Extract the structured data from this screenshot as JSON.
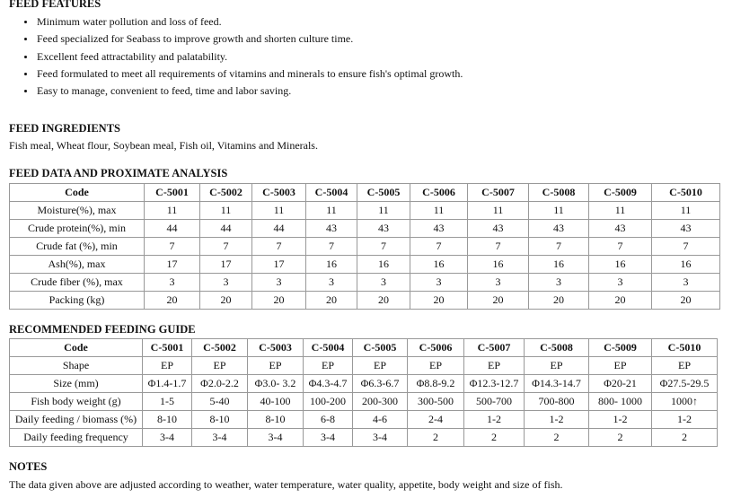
{
  "features": {
    "title": "FEED FEATURES",
    "items": [
      "Minimum water pollution and loss of feed.",
      "Feed specialized for Seabass to improve growth and shorten culture time.",
      "Excellent feed attractability and palatability.",
      "Feed formulated to meet all requirements of vitamins and minerals to ensure fish's optimal growth.",
      "Easy to manage, convenient to feed, time and labor saving."
    ]
  },
  "ingredients": {
    "title": "FEED INGREDIENTS",
    "text": "Fish meal, Wheat flour, Soybean meal, Fish oil, Vitamins and Minerals."
  },
  "analysis": {
    "title": "FEED DATA AND PROXIMATE ANALYSIS",
    "table": {
      "header": [
        "Code",
        "C-5001",
        "C-5002",
        "C-5003",
        "C-5004",
        "C-5005",
        "C-5006",
        "C-5007",
        "C-5008",
        "C-5009",
        "C-5010"
      ],
      "rows": [
        [
          "Moisture(%), max",
          "11",
          "11",
          "11",
          "11",
          "11",
          "11",
          "11",
          "11",
          "11",
          "11"
        ],
        [
          "Crude protein(%), min",
          "44",
          "44",
          "44",
          "43",
          "43",
          "43",
          "43",
          "43",
          "43",
          "43"
        ],
        [
          "Crude fat (%), min",
          "7",
          "7",
          "7",
          "7",
          "7",
          "7",
          "7",
          "7",
          "7",
          "7"
        ],
        [
          "Ash(%), max",
          "17",
          "17",
          "17",
          "16",
          "16",
          "16",
          "16",
          "16",
          "16",
          "16"
        ],
        [
          "Crude fiber (%), max",
          "3",
          "3",
          "3",
          "3",
          "3",
          "3",
          "3",
          "3",
          "3",
          "3"
        ],
        [
          "Packing (kg)",
          "20",
          "20",
          "20",
          "20",
          "20",
          "20",
          "20",
          "20",
          "20",
          "20"
        ]
      ]
    }
  },
  "guide": {
    "title": "RECOMMENDED FEEDING GUIDE",
    "table": {
      "header": [
        "Code",
        "C-5001",
        "C-5002",
        "C-5003",
        "C-5004",
        "C-5005",
        "C-5006",
        "C-5007",
        "C-5008",
        "C-5009",
        "C-5010"
      ],
      "rows": [
        [
          "Shape",
          "EP",
          "EP",
          "EP",
          "EP",
          "EP",
          "EP",
          "EP",
          "EP",
          "EP",
          "EP"
        ],
        [
          "Size (mm)",
          "Φ1.4-1.7",
          "Φ2.0-2.2",
          "Φ3.0- 3.2",
          "Φ4.3-4.7",
          "Φ6.3-6.7",
          "Φ8.8-9.2",
          "Φ12.3-12.7",
          "Φ14.3-14.7",
          "Φ20-21",
          "Φ27.5-29.5"
        ],
        [
          "Fish body weight (g)",
          "1-5",
          "5-40",
          "40-100",
          "100-200",
          "200-300",
          "300-500",
          "500-700",
          "700-800",
          "800- 1000",
          "1000↑"
        ],
        [
          "Daily feeding / biomass (%)",
          "8-10",
          "8-10",
          "8-10",
          "6-8",
          "4-6",
          "2-4",
          "1-2",
          "1-2",
          "1-2",
          "1-2"
        ],
        [
          "Daily feeding frequency",
          "3-4",
          "3-4",
          "3-4",
          "3-4",
          "3-4",
          "2",
          "2",
          "2",
          "2",
          "2"
        ]
      ]
    }
  },
  "notes": {
    "title": "NOTES",
    "text": "The data given above are adjusted according to weather, water temperature, water quality, appetite, body weight and size of fish."
  }
}
